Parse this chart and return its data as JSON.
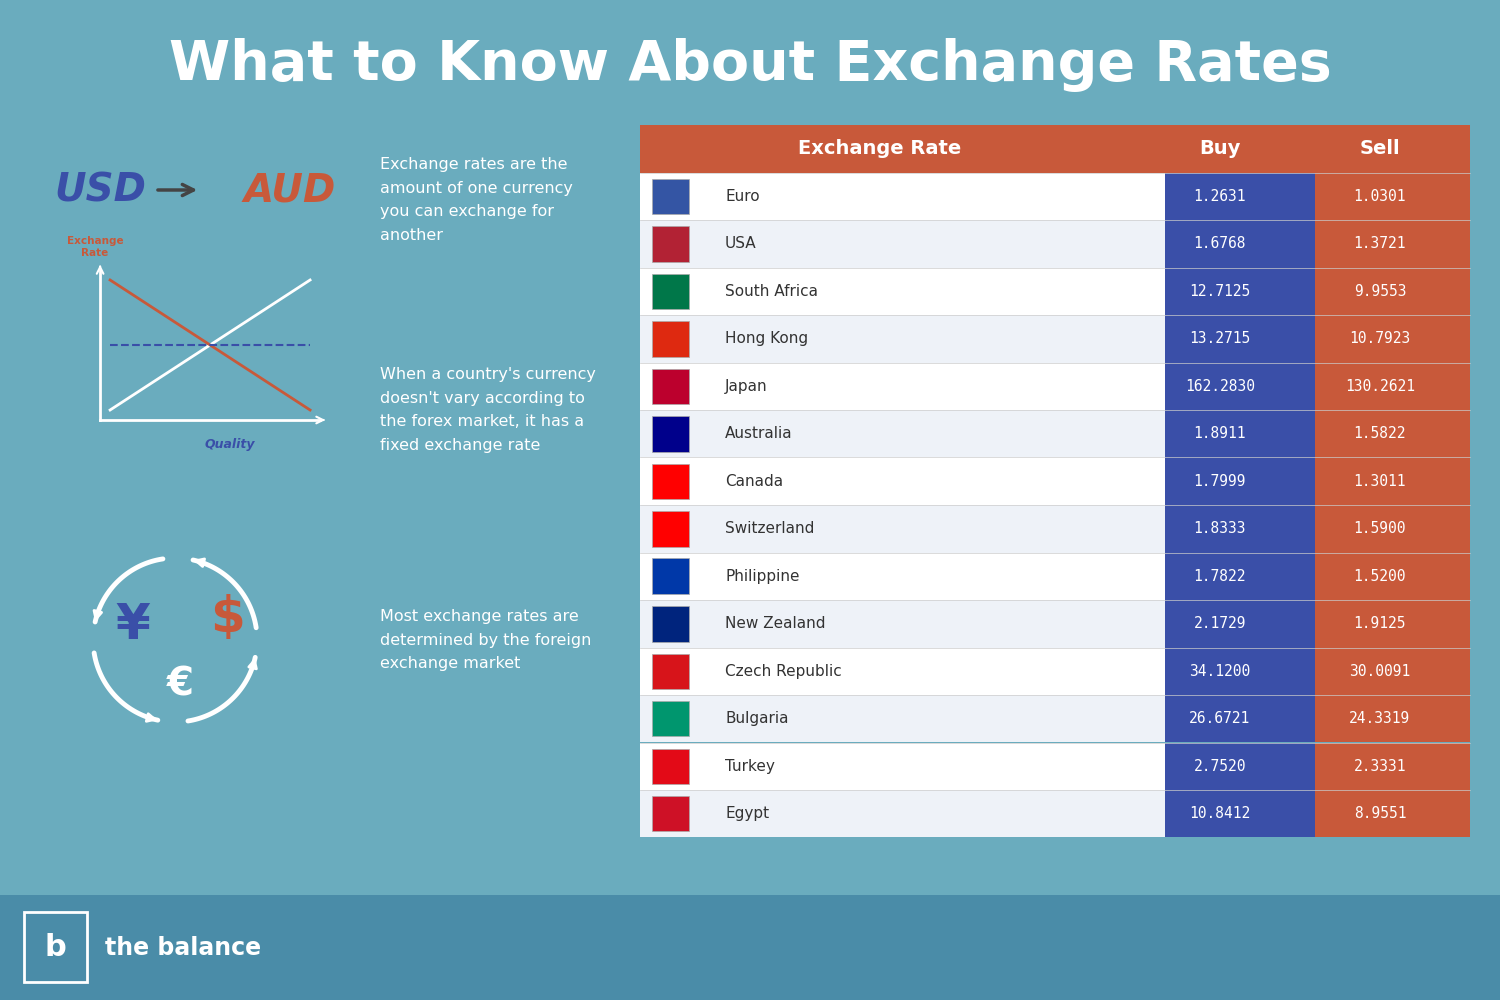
{
  "title": "What to Know About Exchange Rates",
  "bg_color": "#6aacbe",
  "title_color": "#ffffff",
  "table_header_color": "#c8593a",
  "table_buy_color": "#3a4fa8",
  "table_sell_color": "#c8593a",
  "table_row_bg1": "#ffffff",
  "table_row_bg2": "#eef2f8",
  "table_text_color": "#333333",
  "table_header_text": "#ffffff",
  "currencies": [
    "Euro",
    "USA",
    "South Africa",
    "Hong Kong",
    "Japan",
    "Australia",
    "Canada",
    "Switzerland",
    "Philippine",
    "New Zealand",
    "Czech Republic",
    "Bulgaria",
    "Turkey",
    "Egypt"
  ],
  "buy": [
    "1.2631",
    "1.6768",
    "12.7125",
    "13.2715",
    "162.2830",
    "1.8911",
    "1.7999",
    "1.8333",
    "1.7822",
    "2.1729",
    "34.1200",
    "26.6721",
    "2.7520",
    "10.8412"
  ],
  "sell": [
    "1.0301",
    "1.3721",
    "9.9553",
    "10.7923",
    "130.2621",
    "1.5822",
    "1.3011",
    "1.5900",
    "1.5200",
    "1.9125",
    "30.0091",
    "24.3319",
    "2.3331",
    "8.9551"
  ],
  "desc1": "Exchange rates are the\namount of one currency\nyou can exchange for\nanother",
  "desc2": "When a country's currency\ndoesn't vary according to\nthe forex market, it has a\nfixed exchange rate",
  "desc3": "Most exchange rates are\ndetermined by the foreign\nexchange market",
  "logo_text": "the balance",
  "footer_bg": "#4a8fa8",
  "flag_colors": [
    "#3455a4",
    "#b22234",
    "#007749",
    "#de2910",
    "#bc002d",
    "#00008b",
    "#ff0000",
    "#ff0000",
    "#0038a8",
    "#00247d",
    "#d7141a",
    "#00966e",
    "#e30a17",
    "#ce1126"
  ]
}
